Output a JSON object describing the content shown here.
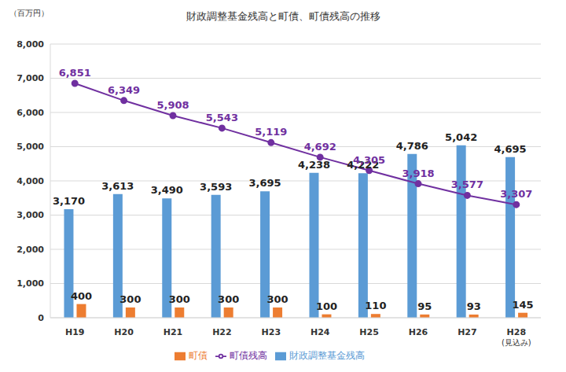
{
  "chart_data": {
    "type": "bar",
    "title": "財政調整基金残高と町債、町債残高の推移",
    "y_label": "（百万円）",
    "categories": [
      "H19",
      "H20",
      "H21",
      "H22",
      "H23",
      "H24",
      "H25",
      "H26",
      "H27",
      "H28(見込み)"
    ],
    "series": [
      {
        "name": "財政調整基金残高",
        "type": "bar",
        "color": "#5b9bd5",
        "values": [
          3170,
          3613,
          3490,
          3593,
          3695,
          4238,
          4222,
          4786,
          5042,
          4695
        ],
        "value_labels": [
          "3,170",
          "3,613",
          "3,490",
          "3,593",
          "3,695",
          "4,238",
          "4,222",
          "4,786",
          "5,042",
          "4,695"
        ]
      },
      {
        "name": "町債",
        "type": "bar",
        "color": "#ed7d31",
        "values": [
          400,
          300,
          300,
          300,
          300,
          100,
          110,
          95,
          93,
          145
        ]
      },
      {
        "name": "町債残高",
        "type": "line",
        "color": "#7030a0",
        "marker": "circle",
        "values": [
          6851,
          6349,
          5908,
          5543,
          5119,
          4692,
          4305,
          3918,
          3577,
          3307
        ],
        "value_labels": [
          "6,851",
          "6,349",
          "5,908",
          "5,543",
          "5,119",
          "4,692",
          "4,305",
          "3,918",
          "3,577",
          "3,307"
        ]
      }
    ],
    "ylim": [
      0,
      8000
    ],
    "yticks": [
      0,
      {
        "value": 1000,
        "label": "1,000"
      },
      {
        "value": 2000,
        "label": "2,000"
      },
      {
        "value": 3000,
        "label": "3,000"
      },
      {
        "value": 4000,
        "label": "4,000"
      },
      {
        "value": 5000,
        "label": "5,000"
      },
      {
        "value": 6000,
        "label": "6,000"
      },
      {
        "value": 7000,
        "label": "7,000"
      },
      {
        "value": 8000,
        "label": "8,000"
      }
    ],
    "grid": true,
    "legend": "bottom",
    "data_labels": true
  }
}
